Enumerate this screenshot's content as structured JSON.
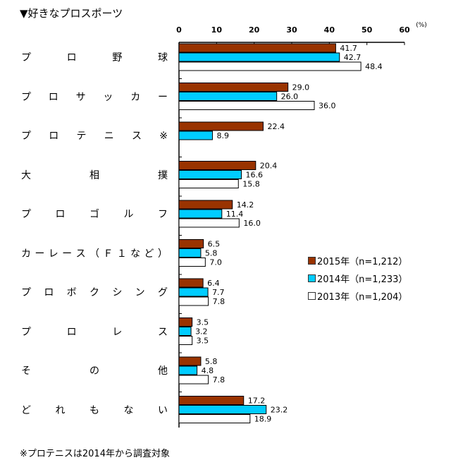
{
  "title": "▼好きなプロスポーツ",
  "note": "※プロテニスは2014年から調査対象",
  "chart_data": {
    "type": "bar",
    "orientation": "horizontal",
    "unit_label": "(%)",
    "xlim": [
      0,
      60
    ],
    "ticks": [
      "0",
      "10",
      "20",
      "30",
      "40",
      "50",
      "60"
    ],
    "categories": [
      "プロ野球",
      "プロサッカー",
      "プロテニス※",
      "大相撲",
      "プロゴルフ",
      "カーレース（Ｆ１など）",
      "プロボクシング",
      "プロレス",
      "その他",
      "どれもない"
    ],
    "series": [
      {
        "name": "2015年（n=1,212）",
        "color": "#993300",
        "values": [
          41.7,
          29.0,
          22.4,
          20.4,
          14.2,
          6.5,
          6.4,
          3.5,
          5.8,
          17.2
        ]
      },
      {
        "name": "2014年（n=1,233）",
        "color": "#00CCFF",
        "values": [
          42.7,
          26.0,
          8.9,
          16.6,
          11.4,
          5.8,
          7.7,
          3.2,
          4.8,
          23.2
        ]
      },
      {
        "name": "2013年（n=1,204）",
        "color": "#FFFFFF",
        "values": [
          48.4,
          36.0,
          null,
          15.8,
          16.0,
          7.0,
          7.8,
          3.5,
          7.8,
          18.9
        ]
      }
    ],
    "legend_position": "right",
    "grid": false
  }
}
